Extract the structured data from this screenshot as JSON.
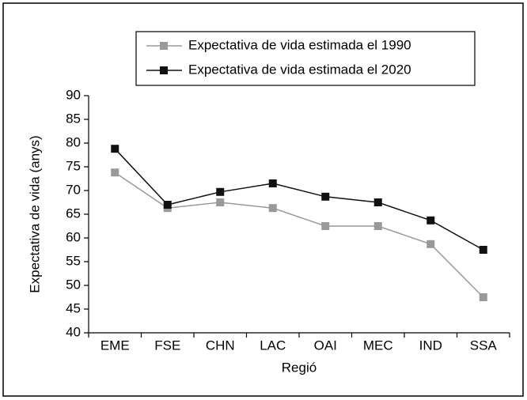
{
  "chart_data": {
    "type": "line",
    "x_label": "Regió",
    "y_label": "Expectativa de vida (anys)",
    "categories": [
      "EME",
      "FSE",
      "CHN",
      "LAC",
      "OAI",
      "MEC",
      "IND",
      "SSA"
    ],
    "series": [
      {
        "name": "Expectativa de vida estimada el 1990",
        "color": "#999999",
        "values": [
          73.8,
          66.3,
          67.5,
          66.3,
          62.5,
          62.5,
          58.7,
          47.5
        ]
      },
      {
        "name": "Expectativa de vida estimada el 2020",
        "color": "#111111",
        "values": [
          78.8,
          67,
          69.7,
          71.5,
          68.7,
          67.5,
          63.7,
          57.5
        ]
      }
    ],
    "ylim": [
      40,
      90
    ],
    "yticks": [
      40,
      45,
      50,
      55,
      60,
      65,
      70,
      75,
      80,
      85,
      90
    ],
    "grid": false,
    "legend": "top"
  }
}
